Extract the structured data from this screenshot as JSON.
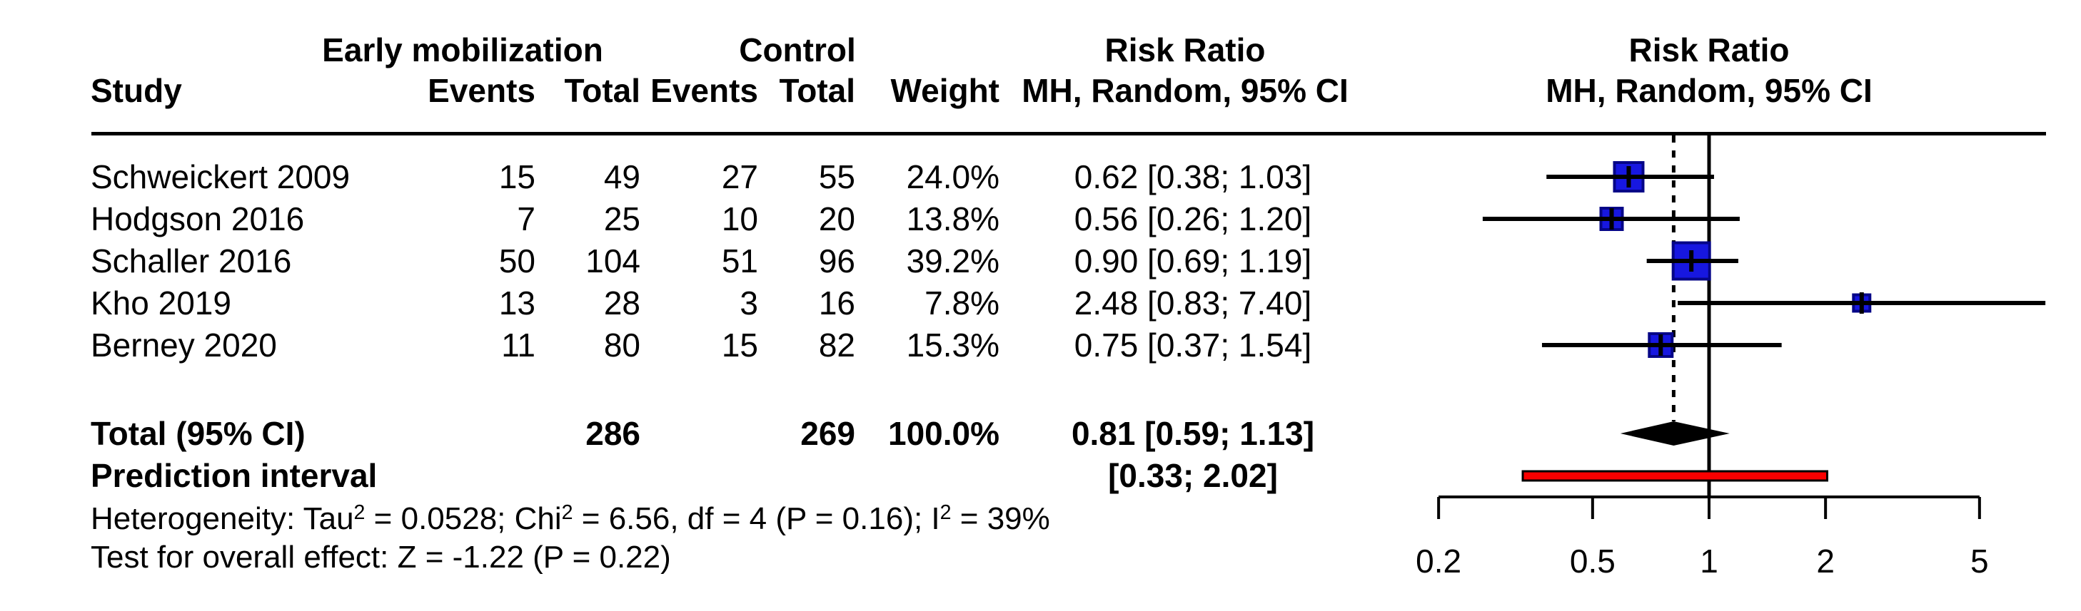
{
  "chart_data": {
    "type": "forest",
    "effect_measure": "Risk Ratio",
    "model": "Mantel-Haenszel Random effects",
    "scale": "log",
    "headers": {
      "study": "Study",
      "group1": "Early mobilization",
      "group2": "Control",
      "events": "Events",
      "total": "Total",
      "weight": "Weight",
      "risk_ratio": "Risk Ratio",
      "method_ci": "MH, Random, 95% CI"
    },
    "studies": [
      {
        "name": "Schweickert 2009",
        "events1": "15",
        "total1": "49",
        "events2": "27",
        "total2": "55",
        "weight": "24.0%",
        "weight_value": 24.0,
        "rr": 0.62,
        "ci_low": 0.38,
        "ci_high": 1.03,
        "ci_text": "0.62 [0.38; 1.03]"
      },
      {
        "name": "Hodgson 2016",
        "events1": "7",
        "total1": "25",
        "events2": "10",
        "total2": "20",
        "weight": "13.8%",
        "weight_value": 13.8,
        "rr": 0.56,
        "ci_low": 0.26,
        "ci_high": 1.2,
        "ci_text": "0.56 [0.26; 1.20]"
      },
      {
        "name": "Schaller 2016",
        "events1": "50",
        "total1": "104",
        "events2": "51",
        "total2": "96",
        "weight": "39.2%",
        "weight_value": 39.2,
        "rr": 0.9,
        "ci_low": 0.69,
        "ci_high": 1.19,
        "ci_text": "0.90 [0.69; 1.19]"
      },
      {
        "name": "Kho 2019",
        "events1": "13",
        "total1": "28",
        "events2": "3",
        "total2": "16",
        "weight": "7.8%",
        "weight_value": 7.8,
        "rr": 2.48,
        "ci_low": 0.83,
        "ci_high": 7.4,
        "ci_text": "2.48 [0.83; 7.40]"
      },
      {
        "name": "Berney 2020",
        "events1": "11",
        "total1": "80",
        "events2": "15",
        "total2": "82",
        "weight": "15.3%",
        "weight_value": 15.3,
        "rr": 0.75,
        "ci_low": 0.37,
        "ci_high": 1.54,
        "ci_text": "0.75 [0.37; 1.54]"
      }
    ],
    "total": {
      "name": "Total (95% CI)",
      "total1": "286",
      "total2": "269",
      "weight": "100.0%",
      "rr": 0.81,
      "ci_low": 0.59,
      "ci_high": 1.13,
      "ci_text": "0.81 [0.59; 1.13]"
    },
    "prediction_interval": {
      "name": "Prediction interval",
      "ci_low": 0.33,
      "ci_high": 2.02,
      "ci_text": "[0.33; 2.02]"
    },
    "heterogeneity_segments": [
      {
        "t": "Heterogeneity: Tau"
      },
      {
        "t": "2",
        "sup": true
      },
      {
        "t": " = 0.0528; Chi"
      },
      {
        "t": "2",
        "sup": true
      },
      {
        "t": " = 6.56, df = 4 (P = 0.16); I"
      },
      {
        "t": "2",
        "sup": true
      },
      {
        "t": " = 39%"
      }
    ],
    "overall_effect_text": "Test for overall effect: Z = -1.22 (P = 0.22)",
    "axis": {
      "scale": "log",
      "tick_labels": [
        "0.2",
        "0.5",
        "1",
        "2",
        "5"
      ],
      "tick_values": [
        0.2,
        0.5,
        1,
        2,
        5
      ],
      "reference_line": 1,
      "pooled_line": 0.81
    },
    "colors": {
      "square_fill": "#1717e0",
      "square_border": "#060687",
      "diamond": "#000000",
      "prediction_bar_fill": "#fa0000",
      "prediction_bar_border": "#000000",
      "lines": "#000000"
    }
  }
}
